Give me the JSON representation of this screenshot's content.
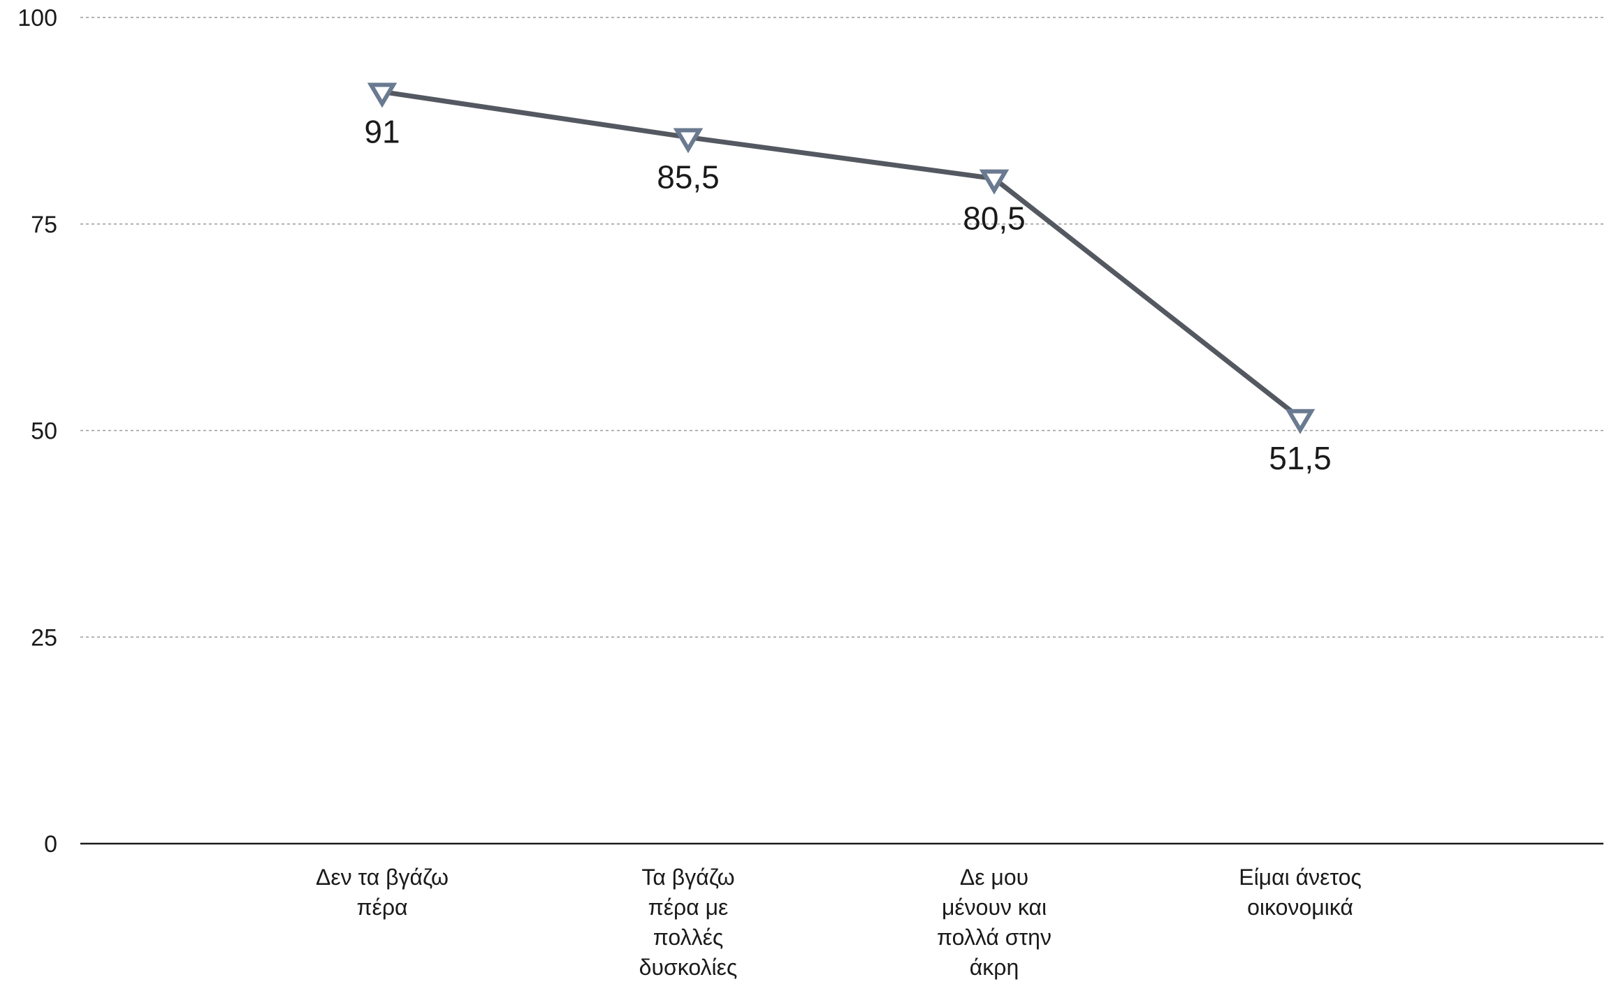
{
  "chart_data": {
    "type": "line",
    "title": "",
    "xlabel": "",
    "ylabel": "",
    "ylim": [
      0,
      100
    ],
    "yticks": [
      {
        "value": 0,
        "label": "0"
      },
      {
        "value": 25,
        "label": "25"
      },
      {
        "value": 50,
        "label": "50"
      },
      {
        "value": 75,
        "label": "75"
      },
      {
        "value": 100,
        "label": "100"
      }
    ],
    "grid": true,
    "legend": "none",
    "marker": "triangle-down-hollow",
    "colors": {
      "line": "#545860",
      "marker": "#6a7a90",
      "grid": "#9a9a9a",
      "axis": "#1a1a1a",
      "text": "#1a1a1a"
    },
    "categories": [
      [
        "Δεν τα βγάζω",
        "πέρα"
      ],
      [
        "Τα βγάζω",
        "πέρα με",
        "πολλές",
        "δυσκολίες"
      ],
      [
        "Δε μου",
        "μένουν και",
        "πολλά στην",
        "άκρη"
      ],
      [
        "Είμαι άνετος",
        "οικονομικά"
      ]
    ],
    "series": [
      {
        "values": [
          91,
          85.5,
          80.5,
          51.5
        ],
        "labels": [
          "91",
          "85,5",
          "80,5",
          "51,5"
        ]
      }
    ]
  }
}
